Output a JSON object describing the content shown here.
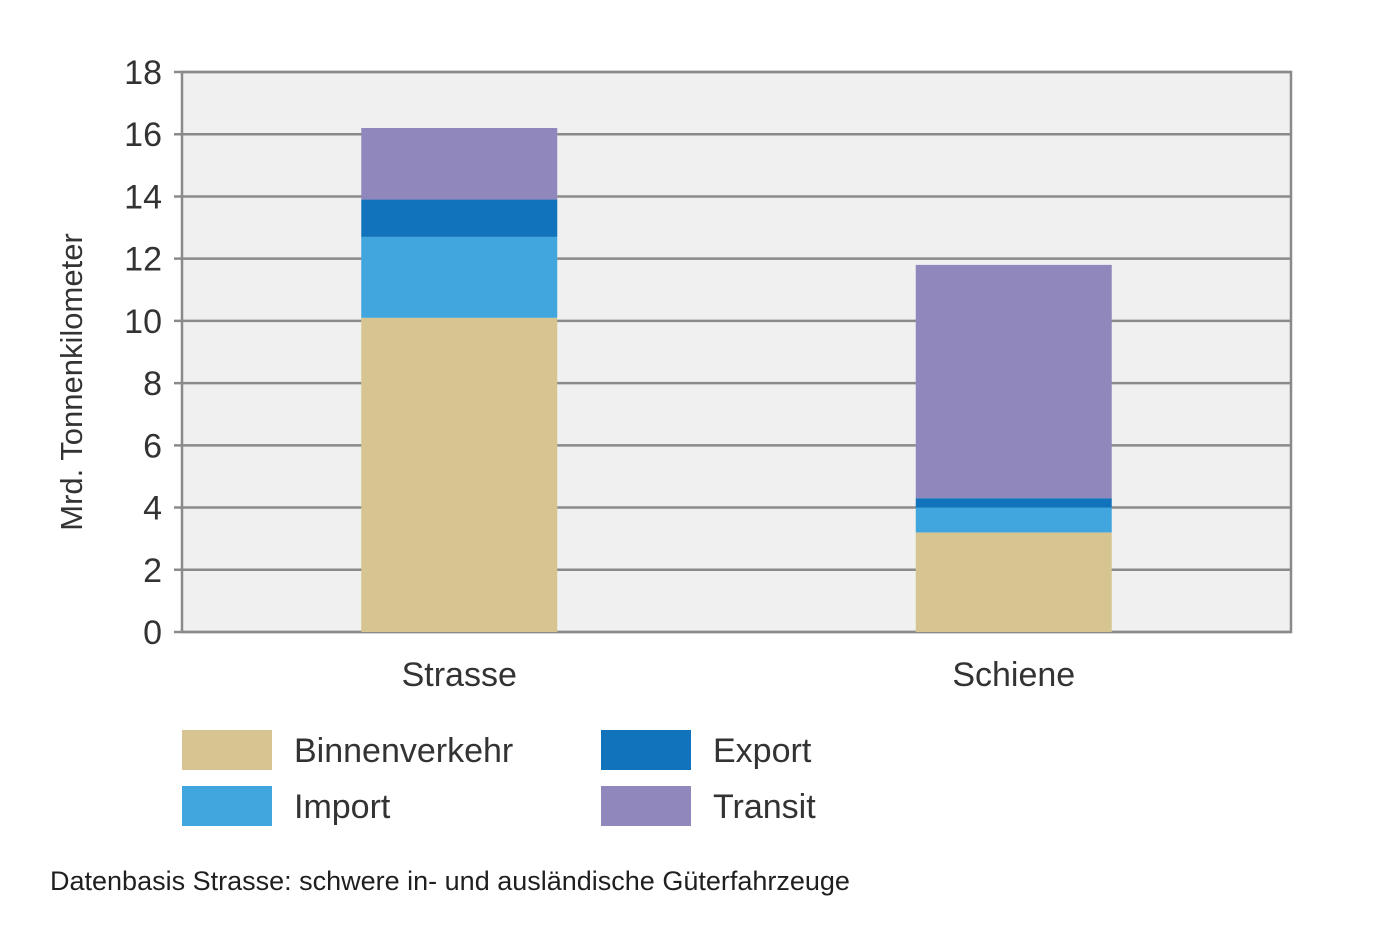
{
  "chart_data": {
    "type": "bar",
    "stacked": true,
    "categories": [
      "Strasse",
      "Schiene"
    ],
    "series": [
      {
        "name": "Binnenverkehr",
        "color": "#d6c590",
        "values": [
          10.1,
          3.2
        ]
      },
      {
        "name": "Import",
        "color": "#41a6de",
        "values": [
          2.6,
          0.8
        ]
      },
      {
        "name": "Export",
        "color": "#1173bb",
        "values": [
          1.2,
          0.3
        ]
      },
      {
        "name": "Transit",
        "color": "#9087bc",
        "values": [
          2.3,
          7.5
        ]
      }
    ],
    "ylabel": "Mrd. Tonnenkilometer",
    "xlabel": "",
    "ylim": [
      0,
      18
    ],
    "yticks": [
      0,
      2,
      4,
      6,
      8,
      10,
      12,
      14,
      16,
      18
    ],
    "grid": true,
    "plot_background": "#f0f0f0",
    "legend_placement": "bottom-left"
  },
  "footnote": "Datenbasis Strasse: schwere in- und ausländische Güterfahrzeuge"
}
